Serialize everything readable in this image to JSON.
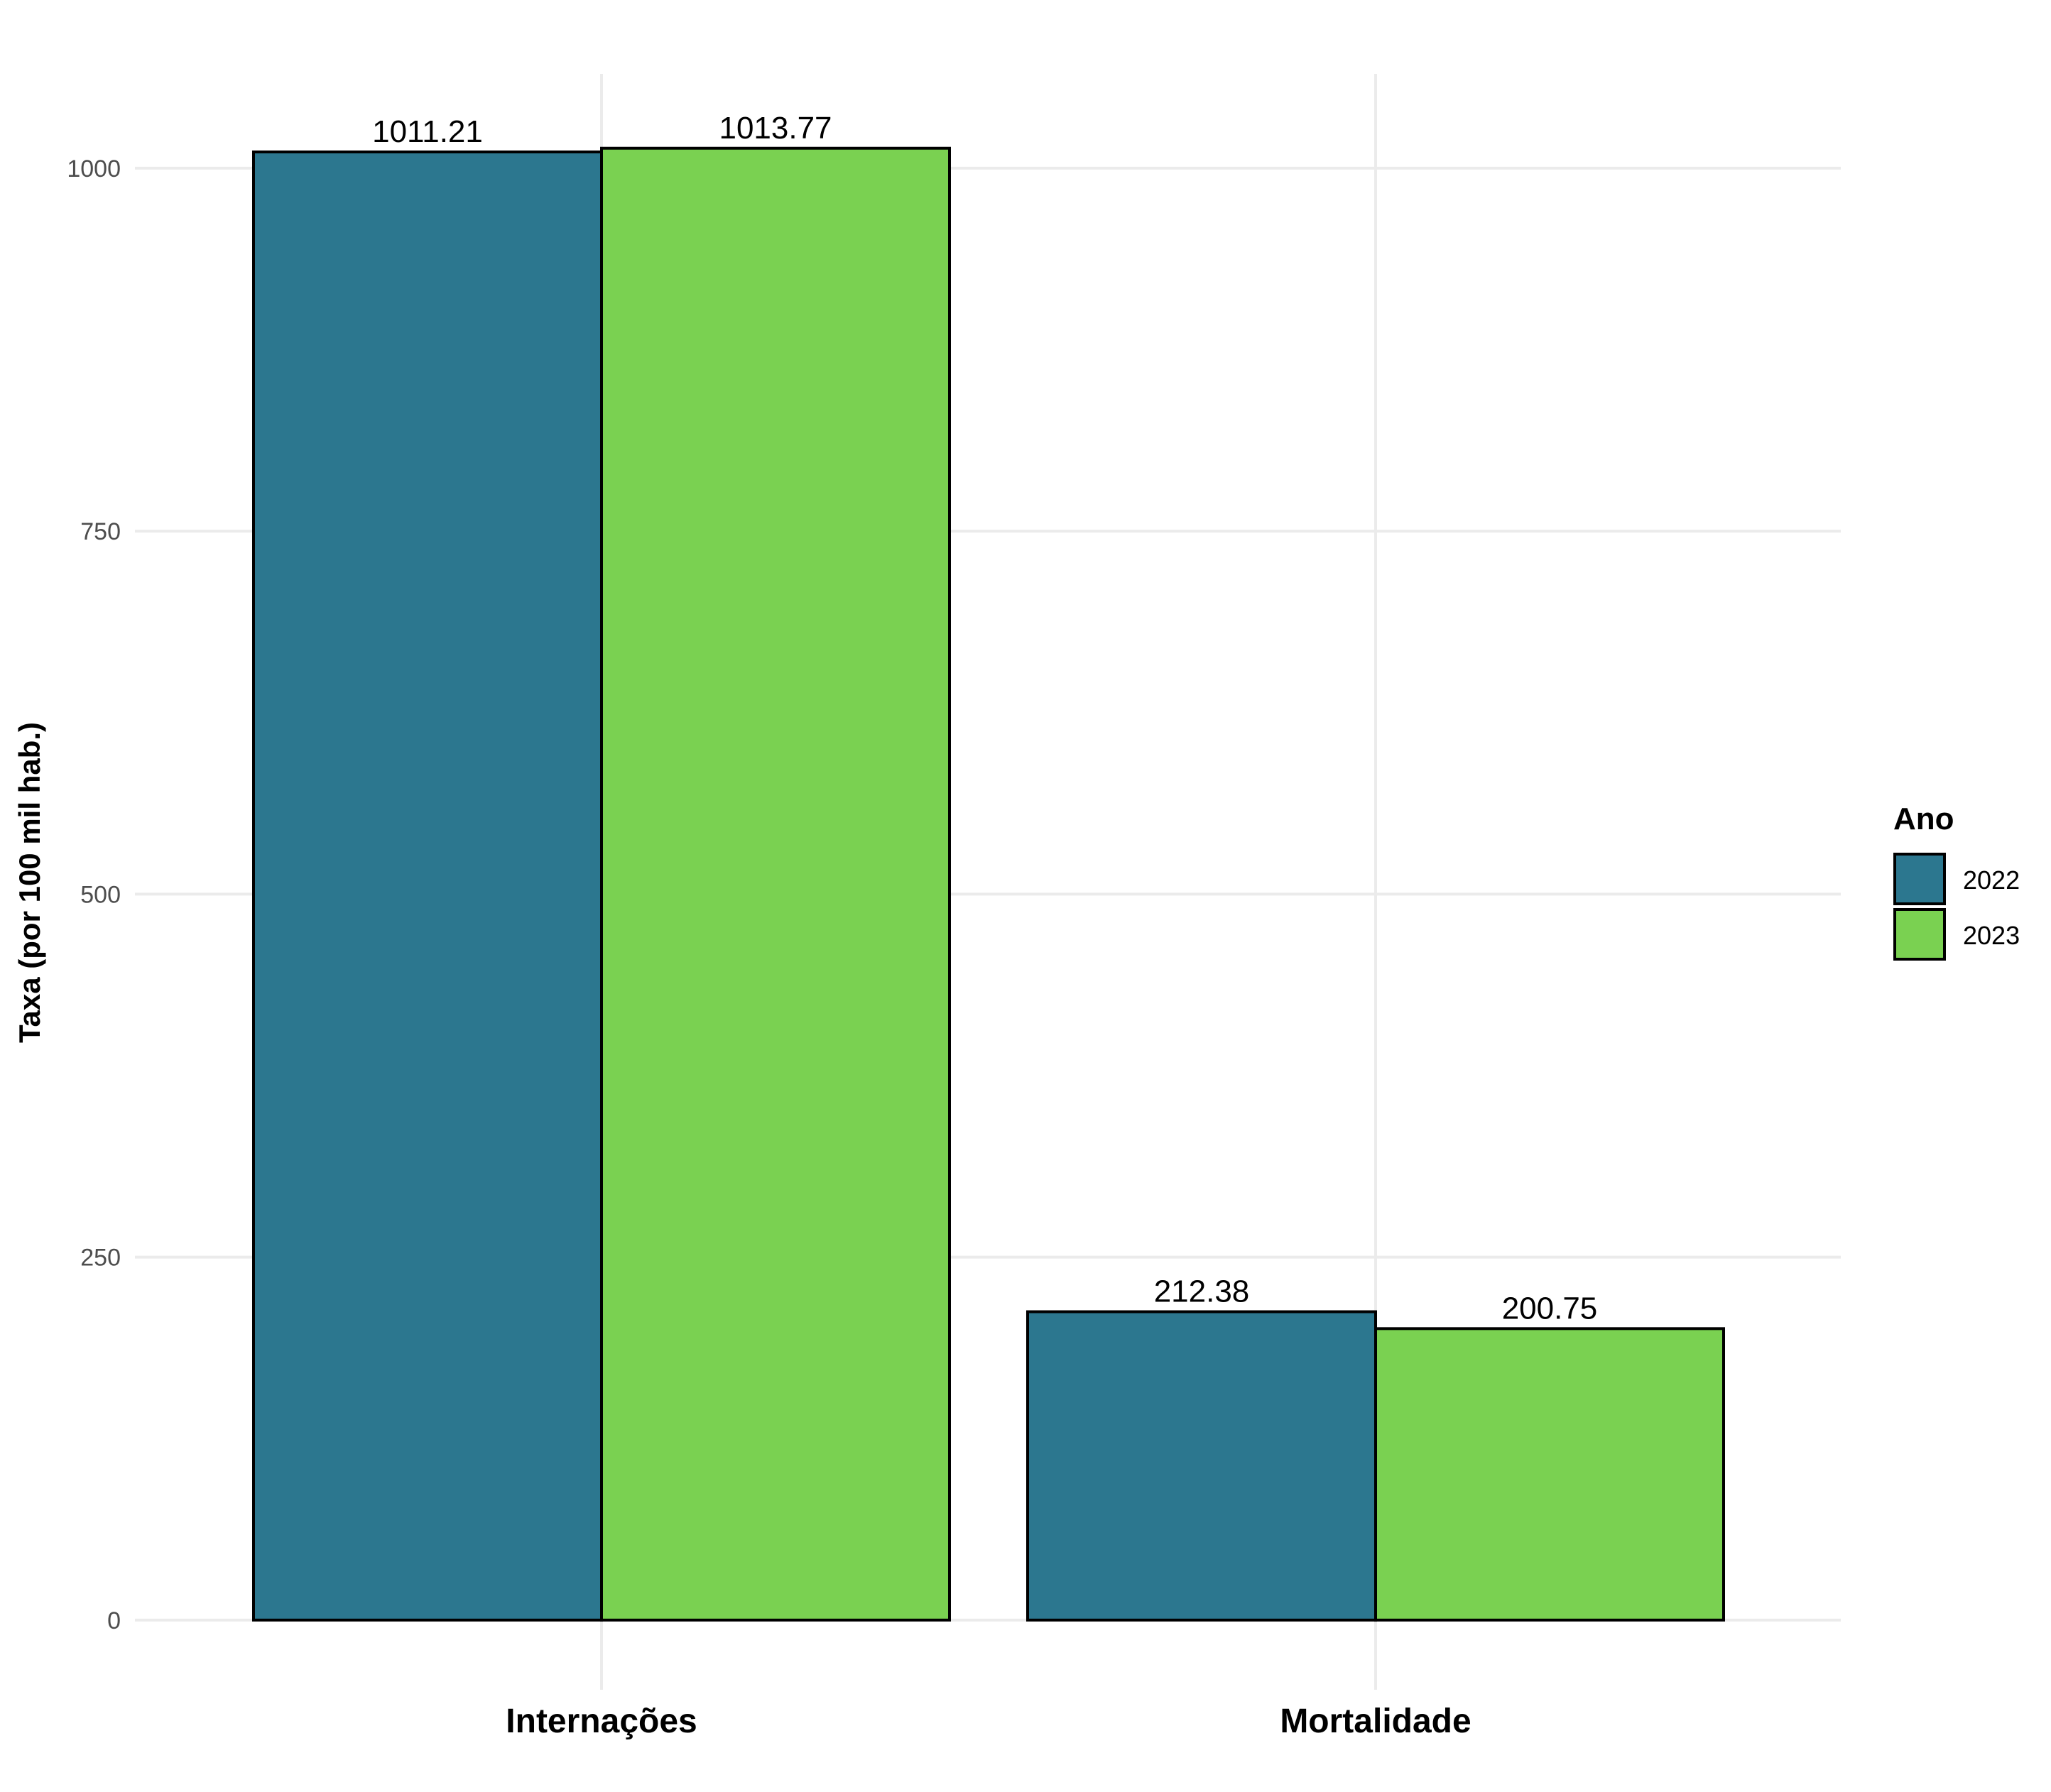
{
  "chart_data": {
    "type": "bar",
    "title": "",
    "xlabel": "",
    "ylabel": "Taxa (por 100 mil hab.)",
    "categories": [
      "Internações",
      "Mortalidade"
    ],
    "series": [
      {
        "name": "2022",
        "values": [
          1011.21,
          212.38
        ],
        "color": "#2C778F"
      },
      {
        "name": "2023",
        "values": [
          1013.77,
          200.75
        ],
        "color": "#7AD151"
      }
    ],
    "data_labels": [
      [
        "1011.21",
        "212.38"
      ],
      [
        "1013.77",
        "200.75"
      ]
    ],
    "yticks": [
      0,
      250,
      500,
      750,
      1000
    ],
    "ylim": [
      -48,
      1065
    ],
    "grid": true,
    "legend": {
      "title": "Ano",
      "position": "right"
    },
    "bar_outline_color": "#000000",
    "grid_color": "#EBEBEB"
  }
}
